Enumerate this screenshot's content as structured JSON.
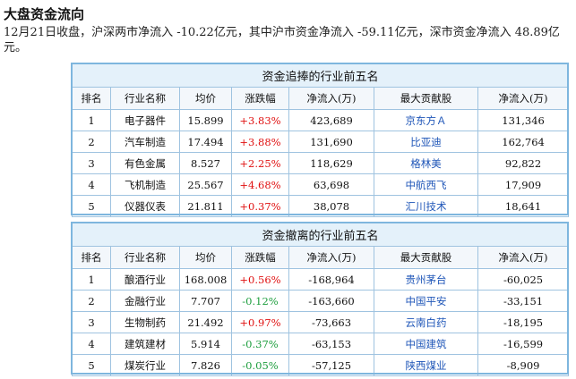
{
  "page": {
    "title": "大盘资金流向",
    "summary": "12月21日收盘，沪深两市净流入 -10.22亿元，其中沪市资金净流入 -59.11亿元，深市资金净流入 48.89亿元。"
  },
  "colors": {
    "positive": "#e01010",
    "negative": "#1e9e3e",
    "stock_link": "#1f56b8",
    "border": "#9fc3e0",
    "caption_bg": "#e4f1fa"
  },
  "inflow_table": {
    "caption": "资金追捧的行业前五名",
    "headers": [
      "排名",
      "行业名称",
      "均价",
      "涨跌幅",
      "净流入(万)",
      "最大贡献股",
      "净流入(万)"
    ],
    "rows": [
      {
        "rank": "1",
        "industry": "电子器件",
        "price": "15.899",
        "change": "+3.83%",
        "inflow": "423,689",
        "stock": "京东方Ａ",
        "stock_inflow": "131,346"
      },
      {
        "rank": "2",
        "industry": "汽车制造",
        "price": "17.494",
        "change": "+3.88%",
        "inflow": "131,690",
        "stock": "比亚迪",
        "stock_inflow": "162,764"
      },
      {
        "rank": "3",
        "industry": "有色金属",
        "price": "8.527",
        "change": "+2.25%",
        "inflow": "118,629",
        "stock": "格林美",
        "stock_inflow": "92,822"
      },
      {
        "rank": "4",
        "industry": "飞机制造",
        "price": "25.567",
        "change": "+4.68%",
        "inflow": "63,698",
        "stock": "中航西飞",
        "stock_inflow": "17,909"
      },
      {
        "rank": "5",
        "industry": "仪器仪表",
        "price": "21.811",
        "change": "+0.37%",
        "inflow": "38,078",
        "stock": "汇川技术",
        "stock_inflow": "18,641"
      }
    ]
  },
  "outflow_table": {
    "caption": "资金撤离的行业前五名",
    "headers": [
      "排名",
      "行业名称",
      "均价",
      "涨跌幅",
      "净流入(万)",
      "最大贡献股",
      "净流入(万)"
    ],
    "rows": [
      {
        "rank": "1",
        "industry": "酿酒行业",
        "price": "168.008",
        "change": "+0.56%",
        "inflow": "-168,964",
        "stock": "贵州茅台",
        "stock_inflow": "-60,025"
      },
      {
        "rank": "2",
        "industry": "金融行业",
        "price": "7.707",
        "change": "-0.12%",
        "inflow": "-163,660",
        "stock": "中国平安",
        "stock_inflow": "-33,151"
      },
      {
        "rank": "3",
        "industry": "生物制药",
        "price": "21.492",
        "change": "+0.97%",
        "inflow": "-73,663",
        "stock": "云南白药",
        "stock_inflow": "-18,195"
      },
      {
        "rank": "4",
        "industry": "建筑建材",
        "price": "5.914",
        "change": "-0.37%",
        "inflow": "-63,153",
        "stock": "中国建筑",
        "stock_inflow": "-16,599"
      },
      {
        "rank": "5",
        "industry": "煤炭行业",
        "price": "7.826",
        "change": "-0.05%",
        "inflow": "-57,125",
        "stock": "陕西煤业",
        "stock_inflow": "-8,909"
      }
    ]
  }
}
